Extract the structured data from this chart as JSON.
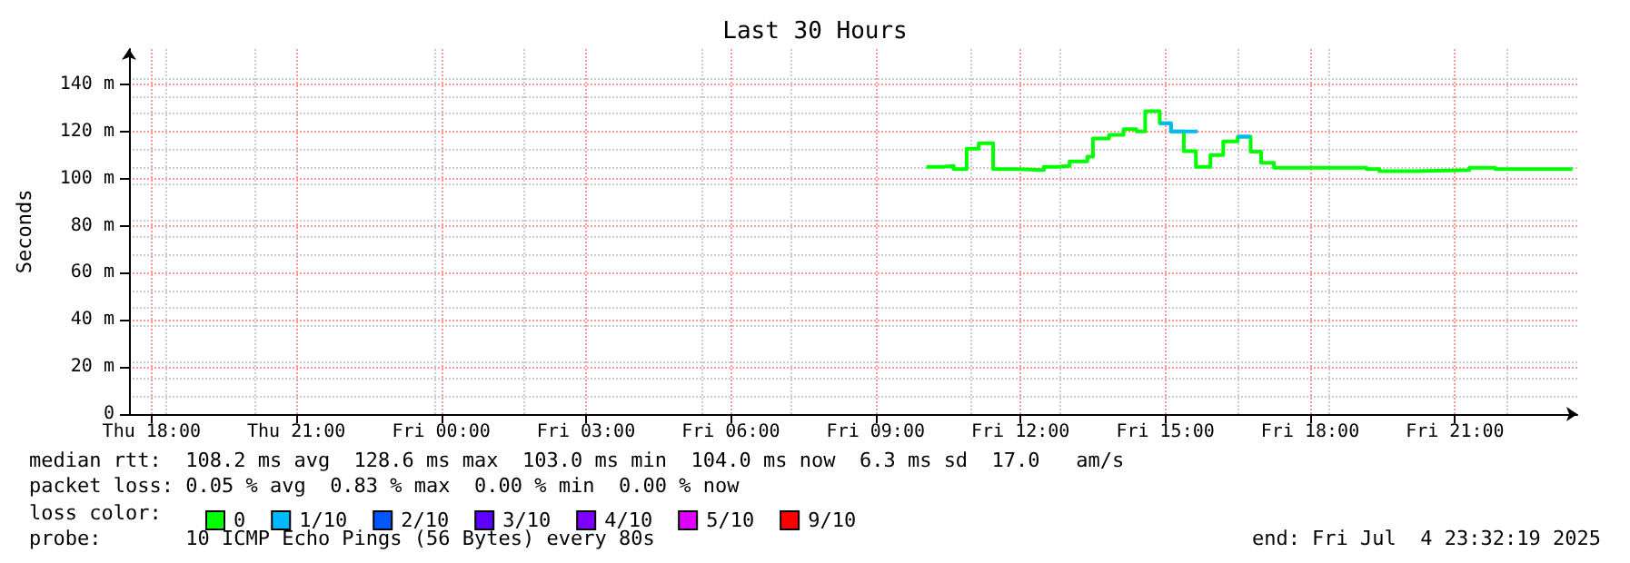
{
  "chart_data": {
    "type": "step",
    "title": "Last 30 Hours",
    "ylabel": "Seconds",
    "legend_title": "loss color:",
    "xlim": [
      "2025-07-03T17:32",
      "2025-07-04T23:32"
    ],
    "xticks": [
      {
        "value": "2025-07-03T18:00",
        "label": "Thu 18:00"
      },
      {
        "value": "2025-07-03T21:00",
        "label": "Thu 21:00"
      },
      {
        "value": "2025-07-04T00:00",
        "label": "Fri 00:00"
      },
      {
        "value": "2025-07-04T03:00",
        "label": "Fri 03:00"
      },
      {
        "value": "2025-07-04T06:00",
        "label": "Fri 06:00"
      },
      {
        "value": "2025-07-04T09:00",
        "label": "Fri 09:00"
      },
      {
        "value": "2025-07-04T12:00",
        "label": "Fri 12:00"
      },
      {
        "value": "2025-07-04T15:00",
        "label": "Fri 15:00"
      },
      {
        "value": "2025-07-04T18:00",
        "label": "Fri 18:00"
      },
      {
        "value": "2025-07-04T21:00",
        "label": "Fri 21:00"
      }
    ],
    "ylim": [
      0,
      155
    ],
    "yticks": [
      0,
      {
        "value": 20,
        "label": "20 m"
      },
      {
        "value": 40,
        "label": "40 m"
      },
      {
        "value": 60,
        "label": "60 m"
      },
      {
        "value": 80,
        "label": "80 m"
      },
      {
        "value": 100,
        "label": "100 m"
      },
      {
        "value": 120,
        "label": "120 m"
      },
      {
        "value": 140,
        "label": "140 m"
      }
    ],
    "grid": true,
    "legend": "bottom",
    "marker": "none",
    "line_style": "solid",
    "series": [
      {
        "name": "0",
        "color": "#00ff00",
        "x": [
          "2025-07-04T10:03",
          "2025-07-04T10:23",
          "2025-07-04T10:37",
          "2025-07-04T10:53",
          "2025-07-04T11:08",
          "2025-07-04T11:26",
          "2025-07-04T11:56",
          "2025-07-04T12:29",
          "2025-07-04T12:45",
          "2025-07-04T13:01",
          "2025-07-04T13:23",
          "2025-07-04T13:30",
          "2025-07-04T13:50",
          "2025-07-04T14:08",
          "2025-07-04T14:24",
          "2025-07-04T14:35",
          "2025-07-04T14:53",
          "2025-07-04T15:07",
          "2025-07-04T15:23",
          "2025-07-04T15:38",
          "2025-07-04T15:56",
          "2025-07-04T16:12",
          "2025-07-04T16:30",
          "2025-07-04T16:46",
          "2025-07-04T16:59",
          "2025-07-04T17:15",
          "2025-07-04T19:10",
          "2025-07-04T19:26",
          "2025-07-04T20:11",
          "2025-07-04T21:18",
          "2025-07-04T21:50",
          "2025-07-04T23:26"
        ],
        "values": [
          105,
          105.4,
          104,
          112.7,
          115,
          104,
          103.6,
          105,
          105.4,
          107.3,
          109.3,
          117,
          118.6,
          121,
          120,
          128.6,
          123.5,
          120,
          111.6,
          105,
          110,
          115.8,
          117.8,
          111.4,
          106.7,
          104.6,
          104,
          103.1,
          103.6,
          104.6,
          104,
          104
        ]
      },
      {
        "name": "1/10",
        "color": "#00b8ff",
        "x": [
          "2025-07-04T14:53",
          "2025-07-04T15:07",
          "2025-07-04T15:23",
          "2025-07-04T15:40",
          "2025-07-04T16:30",
          "2025-07-04T16:46"
        ],
        "values": [
          123.5,
          120,
          120,
          null,
          117.8,
          117.8
        ]
      },
      {
        "name": "2/10",
        "color": "#0059ff"
      },
      {
        "name": "3/10",
        "color": "#5e00ff"
      },
      {
        "name": "4/10",
        "color": "#7e00ff"
      },
      {
        "name": "5/10",
        "color": "#dd00ff"
      },
      {
        "name": "9/10",
        "color": "#ff0000"
      }
    ],
    "annotations": [
      "median rtt:  108.2 ms avg  128.6 ms max  103.0 ms min  104.0 ms now  6.3 ms sd  17.0   am/s",
      "packet loss: 0.05 % avg  0.83 % max  0.00 % min  0.00 % now",
      "probe:       10 ICMP Echo Pings (56 Bytes) every 80s",
      "end: Fri Jul  4 23:32:19 2025"
    ]
  }
}
